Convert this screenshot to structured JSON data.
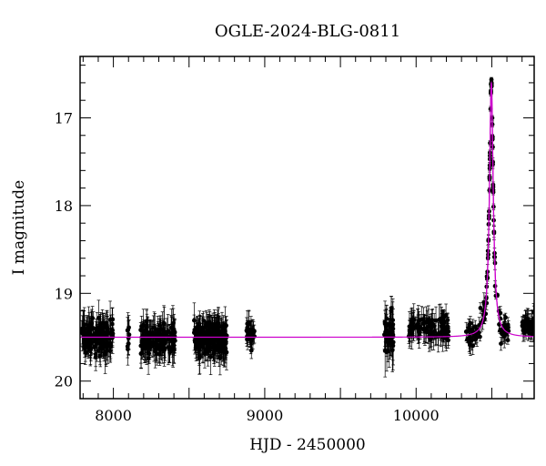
{
  "chart_data": {
    "type": "scatter",
    "title": "OGLE-2024-BLG-0811",
    "xlabel": "HJD - 2450000",
    "ylabel": "I magnitude",
    "xlim": [
      7780,
      10780
    ],
    "ylim": [
      20.2,
      16.3
    ],
    "y_axis_inverted": true,
    "xticks": [
      8000,
      9000,
      10000
    ],
    "yticks": [
      17,
      18,
      19,
      20
    ],
    "grid": false,
    "colors": {
      "points": "#000000",
      "model": "#cc00cc"
    },
    "model": {
      "name": "",
      "baseline_mag": 19.5,
      "peak_mag": 16.6,
      "peak_hjd": 10497,
      "width_days": 14,
      "x": [
        7780,
        9000,
        9800,
        10200,
        10350,
        10430,
        10470,
        10485,
        10490,
        10494,
        10497,
        10500,
        10504,
        10509,
        10520,
        10540,
        10580,
        10650,
        10780
      ],
      "y": [
        19.5,
        19.5,
        19.5,
        19.49,
        19.45,
        19.3,
        18.9,
        18.2,
        17.6,
        16.95,
        16.6,
        16.95,
        17.6,
        18.3,
        18.9,
        19.22,
        19.4,
        19.46,
        19.48
      ]
    },
    "series": [
      {
        "type": "points-with-errorbars",
        "segments": [
          {
            "x": [
              7790,
              8000
            ],
            "mean": 19.5,
            "sd": 0.15,
            "err": [
              0.08,
              0.22
            ],
            "n": 140
          },
          {
            "x": [
              8090,
              8110
            ],
            "mean": 19.5,
            "sd": 0.15,
            "err": [
              0.08,
              0.22
            ],
            "n": 8
          },
          {
            "x": [
              8180,
              8410
            ],
            "mean": 19.52,
            "sd": 0.14,
            "err": [
              0.08,
              0.22
            ],
            "n": 150
          },
          {
            "x": [
              8530,
              8750
            ],
            "mean": 19.5,
            "sd": 0.15,
            "err": [
              0.08,
              0.22
            ],
            "n": 220
          },
          {
            "x": [
              8880,
              8940
            ],
            "mean": 19.45,
            "sd": 0.12,
            "err": [
              0.06,
              0.15
            ],
            "n": 30
          },
          {
            "x": [
              9790,
              9850
            ],
            "mean": 19.42,
            "sd": 0.2,
            "err": [
              0.1,
              0.3
            ],
            "n": 40
          },
          {
            "x": [
              9950,
              10220
            ],
            "mean": 19.4,
            "sd": 0.12,
            "err": [
              0.08,
              0.18
            ],
            "n": 110
          },
          {
            "x": [
              10560,
              10600
            ],
            "mean": 19.42,
            "sd": 0.12,
            "err": [
              0.06,
              0.15
            ],
            "n": 10
          },
          {
            "x": [
              10700,
              10780
            ],
            "mean": 19.38,
            "sd": 0.1,
            "err": [
              0.06,
              0.15
            ],
            "n": 40
          }
        ],
        "event": {
          "x": [
            10330,
            10620
          ],
          "follow_model": true,
          "scatter": 0.1,
          "err": [
            0.02,
            0.12
          ],
          "n": 120
        }
      }
    ]
  }
}
